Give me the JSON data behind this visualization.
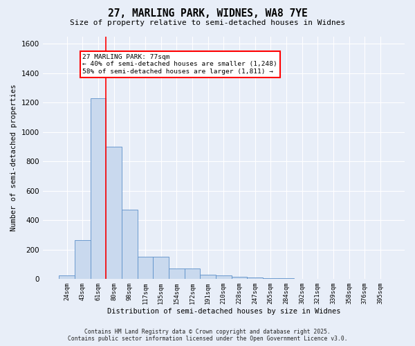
{
  "title": "27, MARLING PARK, WIDNES, WA8 7YE",
  "subtitle": "Size of property relative to semi-detached houses in Widnes",
  "xlabel": "Distribution of semi-detached houses by size in Widnes",
  "ylabel": "Number of semi-detached properties",
  "bar_labels": [
    "24sqm",
    "43sqm",
    "61sqm",
    "80sqm",
    "98sqm",
    "117sqm",
    "135sqm",
    "154sqm",
    "172sqm",
    "191sqm",
    "210sqm",
    "228sqm",
    "247sqm",
    "265sqm",
    "284sqm",
    "302sqm",
    "321sqm",
    "339sqm",
    "358sqm",
    "376sqm",
    "395sqm"
  ],
  "bar_values": [
    25,
    265,
    1230,
    900,
    470,
    150,
    150,
    70,
    70,
    30,
    25,
    15,
    10,
    5,
    3,
    2,
    1,
    1,
    0,
    0,
    0
  ],
  "bar_color": "#c9d9ee",
  "bar_edge_color": "#5b8fc9",
  "vline_x": 2.5,
  "vline_color": "red",
  "annotation_title": "27 MARLING PARK: 77sqm",
  "annotation_line1": "← 40% of semi-detached houses are smaller (1,248)",
  "annotation_line2": "58% of semi-detached houses are larger (1,811) →",
  "annotation_box_facecolor": "white",
  "annotation_box_edgecolor": "red",
  "ylim": [
    0,
    1650
  ],
  "yticks": [
    0,
    200,
    400,
    600,
    800,
    1000,
    1200,
    1400,
    1600
  ],
  "footer1": "Contains HM Land Registry data © Crown copyright and database right 2025.",
  "footer2": "Contains public sector information licensed under the Open Government Licence v3.0.",
  "fig_facecolor": "#e8eef8",
  "plot_facecolor": "#e8eef8",
  "grid_color": "white"
}
